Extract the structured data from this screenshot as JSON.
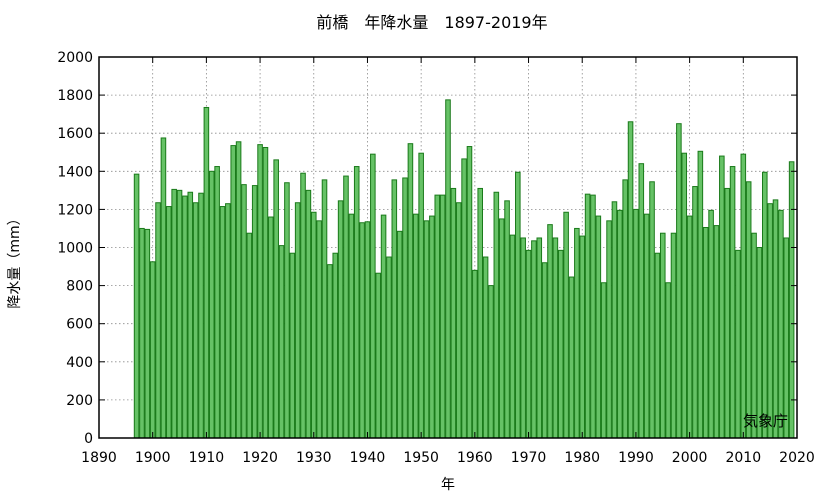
{
  "chart_data": {
    "type": "bar",
    "title": "前橋　年降水量　1897-2019年",
    "xlabel": "年",
    "ylabel": "降水量（mm）",
    "xlim": [
      1890,
      2020
    ],
    "ylim": [
      0,
      2000
    ],
    "x_ticks": [
      1890,
      1900,
      1910,
      1920,
      1930,
      1940,
      1950,
      1960,
      1970,
      1980,
      1990,
      2000,
      2010,
      2020
    ],
    "y_ticks": [
      0,
      200,
      400,
      600,
      800,
      1000,
      1200,
      1400,
      1600,
      1800,
      2000
    ],
    "grid": true,
    "source_note": "気象庁",
    "bar_color": "#66c266",
    "bar_edge_color": "#1a7a1a",
    "x": [
      1897,
      1898,
      1899,
      1900,
      1901,
      1902,
      1903,
      1904,
      1905,
      1906,
      1907,
      1908,
      1909,
      1910,
      1911,
      1912,
      1913,
      1914,
      1915,
      1916,
      1917,
      1918,
      1919,
      1920,
      1921,
      1922,
      1923,
      1924,
      1925,
      1926,
      1927,
      1928,
      1929,
      1930,
      1931,
      1932,
      1933,
      1934,
      1935,
      1936,
      1937,
      1938,
      1939,
      1940,
      1941,
      1942,
      1943,
      1944,
      1945,
      1946,
      1947,
      1948,
      1949,
      1950,
      1951,
      1952,
      1953,
      1954,
      1955,
      1956,
      1957,
      1958,
      1959,
      1960,
      1961,
      1962,
      1963,
      1964,
      1965,
      1966,
      1967,
      1968,
      1969,
      1970,
      1971,
      1972,
      1973,
      1974,
      1975,
      1976,
      1977,
      1978,
      1979,
      1980,
      1981,
      1982,
      1983,
      1984,
      1985,
      1986,
      1987,
      1988,
      1989,
      1990,
      1991,
      1992,
      1993,
      1994,
      1995,
      1996,
      1997,
      1998,
      1999,
      2000,
      2001,
      2002,
      2003,
      2004,
      2005,
      2006,
      2007,
      2008,
      2009,
      2010,
      2011,
      2012,
      2013,
      2014,
      2015,
      2016,
      2017,
      2018,
      2019
    ],
    "values": [
      1385,
      1100,
      1095,
      925,
      1235,
      1575,
      1215,
      1305,
      1300,
      1270,
      1290,
      1235,
      1285,
      1735,
      1400,
      1425,
      1215,
      1230,
      1535,
      1555,
      1330,
      1075,
      1325,
      1540,
      1525,
      1160,
      1460,
      1010,
      1340,
      970,
      1235,
      1390,
      1300,
      1185,
      1140,
      1355,
      910,
      970,
      1245,
      1375,
      1175,
      1425,
      1130,
      1135,
      1490,
      865,
      1170,
      950,
      1355,
      1085,
      1365,
      1545,
      1175,
      1495,
      1140,
      1165,
      1275,
      1275,
      1775,
      1310,
      1235,
      1465,
      1530,
      880,
      1310,
      950,
      800,
      1290,
      1150,
      1245,
      1065,
      1395,
      1050,
      985,
      1035,
      1050,
      920,
      1120,
      1050,
      985,
      1185,
      845,
      1100,
      1060,
      1280,
      1275,
      1165,
      815,
      1140,
      1240,
      1195,
      1355,
      1660,
      1200,
      1440,
      1175,
      1345,
      970,
      1075,
      815,
      1075,
      1650,
      1495,
      1165,
      1320,
      1505,
      1105,
      1195,
      1115,
      1480,
      1310,
      1425,
      985,
      1490,
      1345,
      1075,
      1000,
      1395,
      1230,
      1250,
      1195,
      1050,
      1450
    ]
  }
}
